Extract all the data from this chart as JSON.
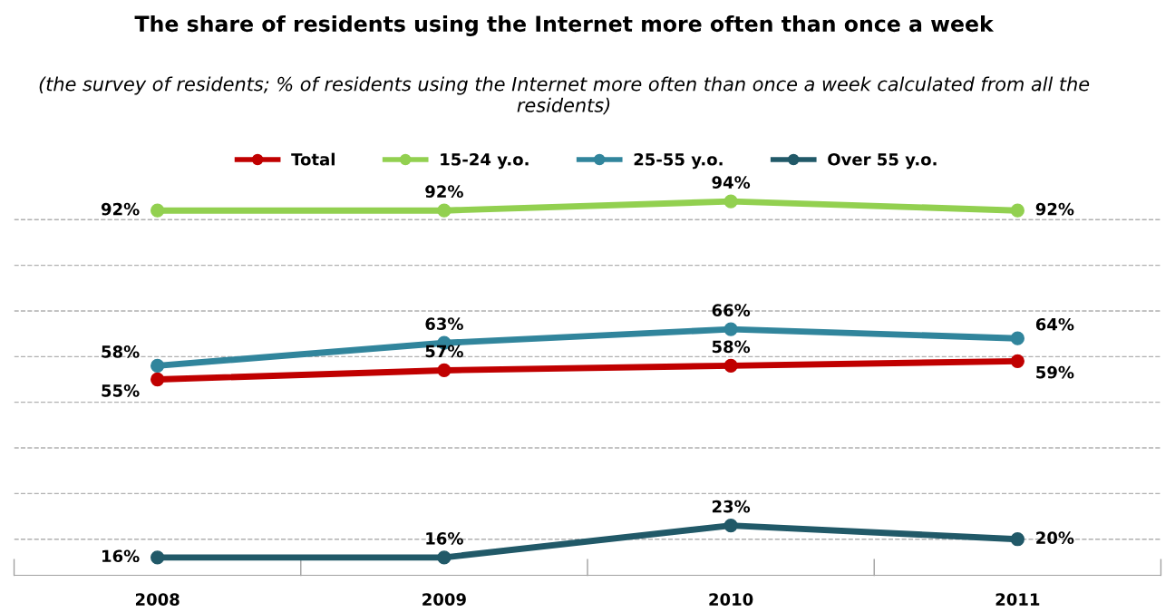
{
  "chart_data": {
    "type": "line",
    "title": "The share of residents using the Internet more often than once a week",
    "subtitle": "(the survey of residents; % of residents using the Internet more often than once a week calculated from all the residents)",
    "categories": [
      "2008",
      "2009",
      "2010",
      "2011"
    ],
    "series": [
      {
        "name": "Total",
        "color": "#c00000",
        "values": [
          55,
          57,
          58,
          59
        ],
        "value_labels": [
          "55%",
          "57%",
          "58%",
          "59%"
        ]
      },
      {
        "name": "15-24 y.o.",
        "color": "#92d050",
        "values": [
          92,
          92,
          94,
          92
        ],
        "value_labels": [
          "92%",
          "92%",
          "94%",
          "92%"
        ]
      },
      {
        "name": "25-55 y.o.",
        "color": "#31859c",
        "values": [
          58,
          63,
          66,
          64
        ],
        "value_labels": [
          "58%",
          "63%",
          "66%",
          "64%"
        ]
      },
      {
        "name": "Over 55 y.o.",
        "color": "#215968",
        "values": [
          16,
          16,
          23,
          20
        ],
        "value_labels": [
          "16%",
          "16%",
          "23%",
          "20%"
        ]
      }
    ],
    "tick_labels": "x",
    "grid": "y",
    "legend": "top",
    "marker": "circle",
    "line_style": "solid"
  }
}
